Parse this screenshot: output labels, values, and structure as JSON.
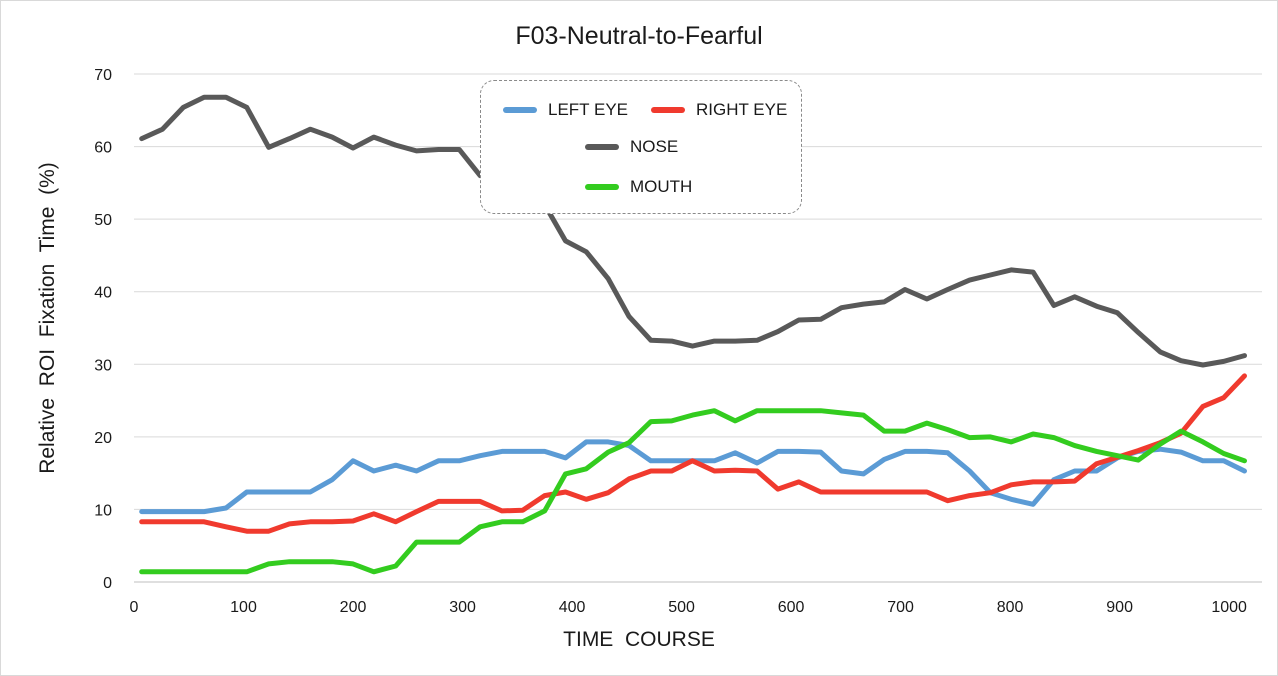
{
  "chart_data": {
    "type": "line",
    "title": "F03-Neutral-to-Fearful",
    "xlabel": "TIME  COURSE",
    "ylabel": "Relative  ROI  Fixation  Time  (%)",
    "xlim": [
      0,
      1030
    ],
    "ylim": [
      0,
      70
    ],
    "x_ticks": [
      0,
      100,
      200,
      300,
      400,
      500,
      600,
      700,
      800,
      900,
      1000
    ],
    "y_ticks": [
      0,
      10,
      20,
      30,
      40,
      50,
      60,
      70
    ],
    "grid": "horizontal",
    "legend_position": "top-center",
    "x": [
      7,
      26,
      45,
      64,
      84,
      103,
      123,
      142,
      161,
      181,
      200,
      219,
      239,
      258,
      278,
      297,
      316,
      336,
      355,
      375,
      394,
      413,
      433,
      452,
      472,
      491,
      510,
      530,
      549,
      569,
      588,
      607,
      627,
      646,
      666,
      685,
      704,
      724,
      743,
      763,
      782,
      801,
      821,
      840,
      859,
      879,
      898,
      917,
      937,
      956,
      976,
      995,
      1014
    ],
    "series": [
      {
        "name": "LEFT EYE",
        "color": "#5b9bd5",
        "values": [
          9.7,
          9.7,
          9.7,
          9.7,
          10.2,
          12.4,
          12.4,
          12.4,
          12.4,
          14.1,
          16.7,
          15.3,
          16.1,
          15.3,
          16.7,
          16.7,
          17.4,
          18.0,
          18.0,
          18.0,
          17.1,
          19.3,
          19.3,
          18.8,
          16.7,
          16.7,
          16.7,
          16.7,
          17.8,
          16.4,
          18.0,
          18.0,
          17.9,
          15.3,
          14.9,
          16.9,
          18.0,
          18.0,
          17.8,
          15.3,
          12.3,
          11.4,
          10.7,
          14.1,
          15.3,
          15.3,
          17.1,
          18.0,
          18.3,
          17.9,
          16.7,
          16.7,
          15.3
        ]
      },
      {
        "name": "RIGHT EYE",
        "color": "#f03a2e",
        "values": [
          8.3,
          8.3,
          8.3,
          8.3,
          7.6,
          7.0,
          7.0,
          8.0,
          8.3,
          8.3,
          8.4,
          9.4,
          8.3,
          9.7,
          11.1,
          11.1,
          11.1,
          9.8,
          9.9,
          11.9,
          12.4,
          11.4,
          12.3,
          14.2,
          15.3,
          15.3,
          16.7,
          15.3,
          15.4,
          15.3,
          12.8,
          13.8,
          12.4,
          12.4,
          12.4,
          12.4,
          12.4,
          12.4,
          11.2,
          11.9,
          12.3,
          13.4,
          13.8,
          13.8,
          13.9,
          16.3,
          17.2,
          18.1,
          19.2,
          20.5,
          24.2,
          25.4,
          28.4
        ]
      },
      {
        "name": "NOSE",
        "color": "#595959",
        "values": [
          61.1,
          62.4,
          65.4,
          66.8,
          66.8,
          65.4,
          59.9,
          61.1,
          62.4,
          61.3,
          59.8,
          61.3,
          60.2,
          59.4,
          59.6,
          59.6,
          56.0,
          55.0,
          54.0,
          52.0,
          47.0,
          45.5,
          41.8,
          36.6,
          33.3,
          33.2,
          32.5,
          33.2,
          33.2,
          33.3,
          34.5,
          36.1,
          36.2,
          37.8,
          38.3,
          38.6,
          40.3,
          39.0,
          40.3,
          41.6,
          42.3,
          43.0,
          42.7,
          38.1,
          39.3,
          38.0,
          37.1,
          34.4,
          31.7,
          30.5,
          29.9,
          30.4,
          31.2
        ]
      },
      {
        "name": "MOUTH",
        "color": "#33cc1f",
        "values": [
          1.4,
          1.4,
          1.4,
          1.4,
          1.4,
          1.4,
          2.5,
          2.8,
          2.8,
          2.8,
          2.5,
          1.4,
          2.2,
          5.5,
          5.5,
          5.5,
          7.6,
          8.3,
          8.3,
          9.8,
          14.9,
          15.6,
          17.9,
          19.2,
          22.1,
          22.2,
          23.0,
          23.6,
          22.2,
          23.6,
          23.6,
          23.6,
          23.6,
          23.3,
          23.0,
          20.8,
          20.8,
          21.9,
          21.0,
          19.9,
          20.0,
          19.3,
          20.4,
          19.9,
          18.8,
          18.0,
          17.4,
          16.8,
          19.0,
          20.8,
          19.3,
          17.7,
          16.7
        ]
      }
    ]
  }
}
